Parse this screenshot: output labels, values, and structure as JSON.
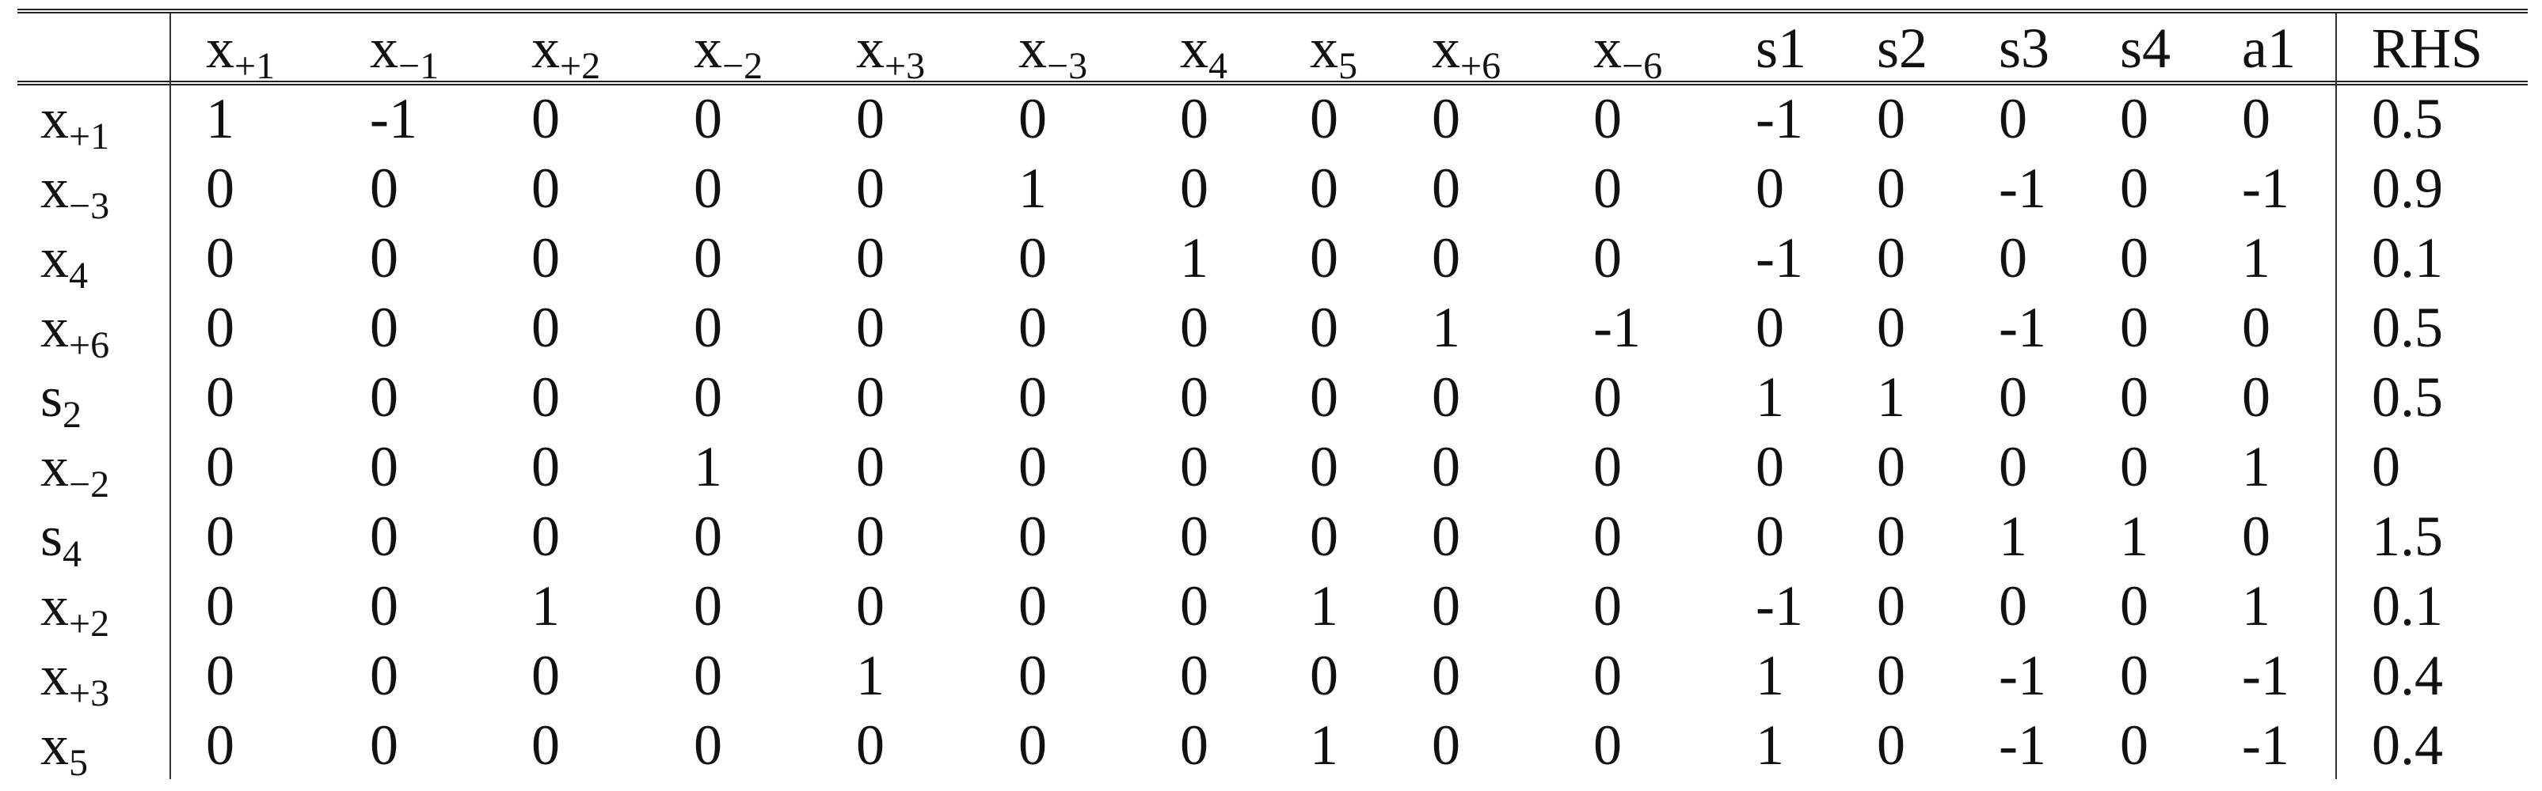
{
  "table": {
    "corner": "",
    "columns": [
      {
        "base": "x",
        "sub": "+1"
      },
      {
        "base": "x",
        "sub": "−1"
      },
      {
        "base": "x",
        "sub": "+2"
      },
      {
        "base": "x",
        "sub": "−2"
      },
      {
        "base": "x",
        "sub": "+3"
      },
      {
        "base": "x",
        "sub": "−3"
      },
      {
        "base": "x",
        "sub": "4"
      },
      {
        "base": "x",
        "sub": "5"
      },
      {
        "base": "x",
        "sub": "+6"
      },
      {
        "base": "x",
        "sub": "−6"
      },
      {
        "base": "s1",
        "sub": ""
      },
      {
        "base": "s2",
        "sub": ""
      },
      {
        "base": "s3",
        "sub": ""
      },
      {
        "base": "s4",
        "sub": ""
      },
      {
        "base": "a1",
        "sub": ""
      },
      {
        "base": "RHS",
        "sub": ""
      }
    ],
    "rows": [
      {
        "label": {
          "base": "x",
          "sub": "+1"
        },
        "values": [
          "1",
          "-1",
          "0",
          "0",
          "0",
          "0",
          "0",
          "0",
          "0",
          "0",
          "-1",
          "0",
          "0",
          "0",
          "0",
          "0.5"
        ]
      },
      {
        "label": {
          "base": "x",
          "sub": "−3"
        },
        "values": [
          "0",
          "0",
          "0",
          "0",
          "0",
          "1",
          "0",
          "0",
          "0",
          "0",
          "0",
          "0",
          "-1",
          "0",
          "-1",
          "0.9"
        ]
      },
      {
        "label": {
          "base": "x",
          "sub": "4"
        },
        "values": [
          "0",
          "0",
          "0",
          "0",
          "0",
          "0",
          "1",
          "0",
          "0",
          "0",
          "-1",
          "0",
          "0",
          "0",
          "1",
          "0.1"
        ]
      },
      {
        "label": {
          "base": "x",
          "sub": "+6"
        },
        "values": [
          "0",
          "0",
          "0",
          "0",
          "0",
          "0",
          "0",
          "0",
          "1",
          "-1",
          "0",
          "0",
          "-1",
          "0",
          "0",
          "0.5"
        ]
      },
      {
        "label": {
          "base": "s",
          "sub": "2"
        },
        "values": [
          "0",
          "0",
          "0",
          "0",
          "0",
          "0",
          "0",
          "0",
          "0",
          "0",
          "1",
          "1",
          "0",
          "0",
          "0",
          "0.5"
        ]
      },
      {
        "label": {
          "base": "x",
          "sub": "−2"
        },
        "values": [
          "0",
          "0",
          "0",
          "1",
          "0",
          "0",
          "0",
          "0",
          "0",
          "0",
          "0",
          "0",
          "0",
          "0",
          "1",
          "0"
        ]
      },
      {
        "label": {
          "base": "s",
          "sub": "4"
        },
        "values": [
          "0",
          "0",
          "0",
          "0",
          "0",
          "0",
          "0",
          "0",
          "0",
          "0",
          "0",
          "0",
          "1",
          "1",
          "0",
          "1.5"
        ]
      },
      {
        "label": {
          "base": "x",
          "sub": "+2"
        },
        "values": [
          "0",
          "0",
          "1",
          "0",
          "0",
          "0",
          "0",
          "1",
          "0",
          "0",
          "-1",
          "0",
          "0",
          "0",
          "1",
          "0.1"
        ]
      },
      {
        "label": {
          "base": "x",
          "sub": "+3"
        },
        "values": [
          "0",
          "0",
          "0",
          "0",
          "1",
          "0",
          "0",
          "0",
          "0",
          "0",
          "1",
          "0",
          "-1",
          "0",
          "-1",
          "0.4"
        ]
      },
      {
        "label": {
          "base": "x",
          "sub": "5"
        },
        "values": [
          "0",
          "0",
          "0",
          "0",
          "0",
          "0",
          "0",
          "1",
          "0",
          "0",
          "1",
          "0",
          "-1",
          "0",
          "-1",
          "0.4"
        ]
      }
    ]
  }
}
